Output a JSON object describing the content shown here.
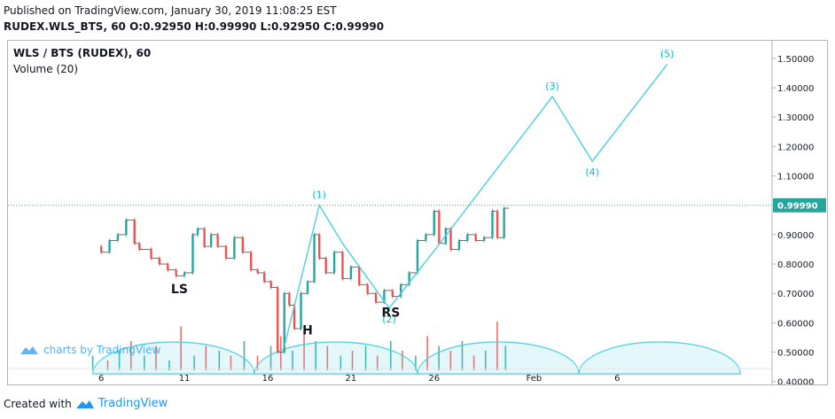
{
  "header": {
    "published": "Published on TradingView.com, January 30, 2019 11:08:25 EST",
    "symbol_line": "RUDEX.WLS_BTS, 60 O:0.92950 H:0.99990 L:0.92950 C:0.99990"
  },
  "footer": {
    "created_with": "Created with",
    "brand": "TradingView"
  },
  "chart_data": {
    "type": "candlestick",
    "title": "WLS / BTS (RUDEX), 60",
    "subtitle": "Volume (20)",
    "watermark": "charts by TradingView",
    "last_price": 0.9999,
    "last_price_label": "0.99990",
    "y_ticks": [
      {
        "value": 1.5,
        "label": "1.50000"
      },
      {
        "value": 1.4,
        "label": "1.40000"
      },
      {
        "value": 1.3,
        "label": "1.30000"
      },
      {
        "value": 1.2,
        "label": "1.20000"
      },
      {
        "value": 1.1,
        "label": "1.10000"
      },
      {
        "value": 0.9,
        "label": "0.90000"
      },
      {
        "value": 0.8,
        "label": "0.80000"
      },
      {
        "value": 0.7,
        "label": "0.70000"
      },
      {
        "value": 0.6,
        "label": "0.60000"
      },
      {
        "value": 0.5,
        "label": "0.50000"
      },
      {
        "value": 0.4,
        "label": "0.40000"
      }
    ],
    "x_ticks": [
      {
        "day": 6,
        "label": "6"
      },
      {
        "day": 11,
        "label": "11"
      },
      {
        "day": 16,
        "label": "16"
      },
      {
        "day": 21,
        "label": "21"
      },
      {
        "day": 26,
        "label": "26"
      },
      {
        "day": 32,
        "label": "Feb"
      },
      {
        "day": 37,
        "label": "6"
      }
    ],
    "ylim": [
      0.39,
      1.56
    ],
    "xlim": [
      0.4,
      46.3
    ],
    "price_path": [
      [
        6.0,
        0.86
      ],
      [
        6.5,
        0.84
      ],
      [
        7.0,
        0.88
      ],
      [
        7.5,
        0.9
      ],
      [
        8.0,
        0.95
      ],
      [
        8.3,
        0.87
      ],
      [
        9.0,
        0.85
      ],
      [
        9.5,
        0.82
      ],
      [
        10.0,
        0.8
      ],
      [
        10.5,
        0.78
      ],
      [
        11.0,
        0.76
      ],
      [
        11.5,
        0.77
      ],
      [
        11.8,
        0.9
      ],
      [
        12.2,
        0.92
      ],
      [
        12.6,
        0.86
      ],
      [
        13.0,
        0.9
      ],
      [
        13.5,
        0.86
      ],
      [
        14.0,
        0.82
      ],
      [
        14.5,
        0.89
      ],
      [
        15.0,
        0.84
      ],
      [
        15.4,
        0.78
      ],
      [
        15.8,
        0.77
      ],
      [
        16.2,
        0.74
      ],
      [
        16.6,
        0.72
      ],
      [
        17.0,
        0.5
      ],
      [
        17.3,
        0.7
      ],
      [
        17.6,
        0.66
      ],
      [
        18.0,
        0.58
      ],
      [
        18.4,
        0.7
      ],
      [
        18.8,
        0.74
      ],
      [
        19.1,
        0.9
      ],
      [
        19.5,
        0.82
      ],
      [
        20.0,
        0.77
      ],
      [
        20.5,
        0.84
      ],
      [
        21.0,
        0.75
      ],
      [
        21.5,
        0.79
      ],
      [
        22.0,
        0.73
      ],
      [
        22.5,
        0.7
      ],
      [
        23.0,
        0.67
      ],
      [
        23.5,
        0.71
      ],
      [
        24.0,
        0.69
      ],
      [
        24.5,
        0.73
      ],
      [
        25.0,
        0.77
      ],
      [
        25.5,
        0.88
      ],
      [
        26.0,
        0.9
      ],
      [
        26.3,
        0.98
      ],
      [
        26.7,
        0.87
      ],
      [
        27.0,
        0.92
      ],
      [
        27.5,
        0.85
      ],
      [
        28.0,
        0.88
      ],
      [
        28.5,
        0.9
      ],
      [
        29.0,
        0.88
      ],
      [
        29.5,
        0.89
      ],
      [
        29.8,
        0.98
      ],
      [
        30.2,
        0.89
      ],
      [
        30.5,
        0.99
      ]
    ],
    "volume": [
      [
        5.5,
        0.3
      ],
      [
        6.4,
        0.2
      ],
      [
        7.1,
        0.4
      ],
      [
        7.8,
        0.6
      ],
      [
        8.6,
        0.3
      ],
      [
        9.3,
        0.5
      ],
      [
        10.1,
        0.2
      ],
      [
        10.8,
        0.9
      ],
      [
        11.6,
        0.3
      ],
      [
        12.3,
        0.5
      ],
      [
        13.1,
        0.4
      ],
      [
        13.8,
        0.3
      ],
      [
        14.6,
        0.6
      ],
      [
        15.4,
        0.3
      ],
      [
        16.2,
        0.5
      ],
      [
        16.8,
        0.7
      ],
      [
        17.5,
        0.4
      ],
      [
        18.2,
        0.8
      ],
      [
        18.9,
        0.6
      ],
      [
        19.6,
        0.5
      ],
      [
        20.4,
        0.3
      ],
      [
        21.1,
        0.4
      ],
      [
        21.9,
        0.5
      ],
      [
        22.6,
        0.3
      ],
      [
        23.4,
        0.6
      ],
      [
        24.1,
        0.4
      ],
      [
        24.9,
        0.3
      ],
      [
        25.6,
        0.7
      ],
      [
        26.3,
        0.5
      ],
      [
        27.0,
        0.4
      ],
      [
        27.7,
        0.6
      ],
      [
        28.4,
        0.3
      ],
      [
        29.1,
        0.4
      ],
      [
        29.8,
        1.0
      ],
      [
        30.3,
        0.5
      ]
    ],
    "wave_line": [
      [
        17.0,
        0.52
      ],
      [
        19.1,
        1.0
      ],
      [
        20.5,
        0.87
      ],
      [
        23.3,
        0.65
      ],
      [
        26.2,
        0.86
      ],
      [
        33.1,
        1.37
      ],
      [
        35.5,
        1.15
      ],
      [
        40.0,
        1.48
      ]
    ],
    "wave_labels": [
      {
        "label": "(1)",
        "x": 19.1,
        "y": 1.0
      },
      {
        "label": "(2)",
        "x": 23.3,
        "y": 0.65
      },
      {
        "label": "(3)",
        "x": 33.1,
        "y": 1.37
      },
      {
        "label": "(4)",
        "x": 35.5,
        "y": 1.15
      },
      {
        "label": "(5)",
        "x": 40.0,
        "y": 1.48
      }
    ],
    "pattern_labels": [
      {
        "label": "LS",
        "x": 10.7,
        "y": 0.7
      },
      {
        "label": "H",
        "x": 18.4,
        "y": 0.56
      },
      {
        "label": "RS",
        "x": 23.4,
        "y": 0.62
      }
    ],
    "colors": {
      "up": "#26a69a",
      "down": "#ef5350",
      "line": "#4dd0e1",
      "label": "#00bcd4",
      "last": "#26a69a",
      "axis_text": "#131722",
      "cycle": "#4dd0e1"
    }
  }
}
